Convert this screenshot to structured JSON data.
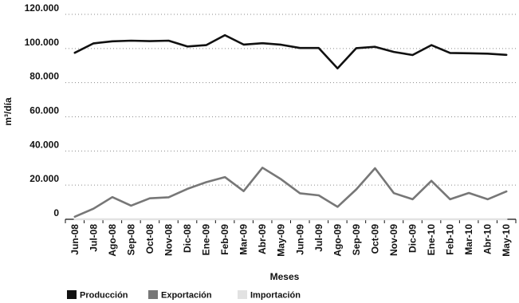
{
  "chart_data": {
    "type": "line",
    "xlabel": "Meses",
    "ylabel": "m³/día",
    "ylim": [
      0,
      120000
    ],
    "yticks": [
      0,
      20000,
      40000,
      60000,
      80000,
      100000,
      120000
    ],
    "ytick_labels": [
      "0",
      "20.000",
      "40.000",
      "60.000",
      "80.000",
      "100.000",
      "120.000"
    ],
    "grid": "horizontal-dotted",
    "legend_position": "bottom-left",
    "categories": [
      "Jun-08",
      "Jul-08",
      "Ago-08",
      "Sep-08",
      "Oct-08",
      "Nov-08",
      "Dic-08",
      "Ene-09",
      "Feb-09",
      "Mar-09",
      "Abr-09",
      "May-09",
      "Jun-09",
      "Jul-09",
      "Ago-09",
      "Sep-09",
      "Oct-09",
      "Nov-09",
      "Dic-09",
      "Ene-10",
      "Feb-10",
      "Mar-10",
      "Abr-10",
      "May-10"
    ],
    "series": [
      {
        "name": "Producción",
        "color": "#111111",
        "values": [
          97500,
          103000,
          104200,
          104600,
          104300,
          104600,
          101200,
          102000,
          107800,
          102300,
          103100,
          102200,
          100300,
          100300,
          88400,
          100200,
          101000,
          98000,
          96200,
          102000,
          97400,
          97200,
          97000,
          96300
        ]
      },
      {
        "name": "Exportación",
        "color": "#777777",
        "values": [
          1500,
          6200,
          13000,
          8000,
          12300,
          12900,
          17800,
          21700,
          24700,
          16500,
          30200,
          23400,
          15200,
          14000,
          7300,
          17500,
          29900,
          15300,
          11700,
          22500,
          11700,
          15400,
          11700,
          16300
        ]
      },
      {
        "name": "Importación",
        "color": "#e2e2e2",
        "values": [
          0,
          0,
          0,
          0,
          0,
          0,
          0,
          0,
          0,
          0,
          0,
          0,
          0,
          0,
          0,
          0,
          0,
          0,
          0,
          0,
          0,
          0,
          0,
          0
        ]
      }
    ]
  }
}
